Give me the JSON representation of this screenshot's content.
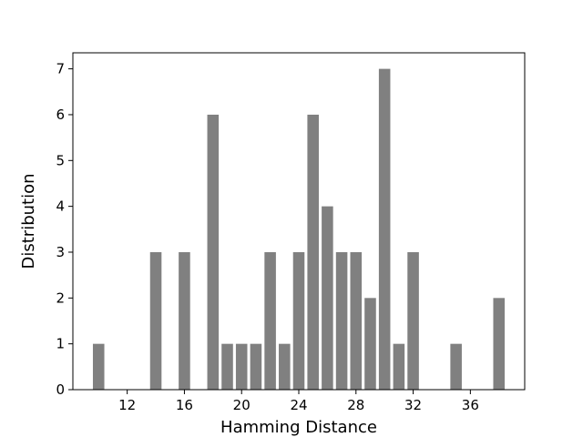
{
  "chart_data": {
    "type": "bar",
    "title": "",
    "xlabel": "Hamming Distance",
    "ylabel": "Distribution",
    "bar_color": "#808080",
    "x": [
      10,
      14,
      16,
      18,
      19,
      20,
      21,
      22,
      23,
      24,
      25,
      26,
      27,
      28,
      29,
      30,
      31,
      32,
      35,
      38
    ],
    "values": [
      1,
      3,
      3,
      6,
      1,
      1,
      1,
      3,
      1,
      3,
      6,
      4,
      3,
      3,
      2,
      7,
      1,
      3,
      1,
      2
    ],
    "bar_width": 0.8,
    "xlim": [
      8.2,
      39.8
    ],
    "ylim": [
      0,
      7.35
    ],
    "xticks": [
      12,
      16,
      20,
      24,
      28,
      32,
      36
    ],
    "yticks": [
      0,
      1,
      2,
      3,
      4,
      5,
      6,
      7
    ],
    "grid": false
  }
}
